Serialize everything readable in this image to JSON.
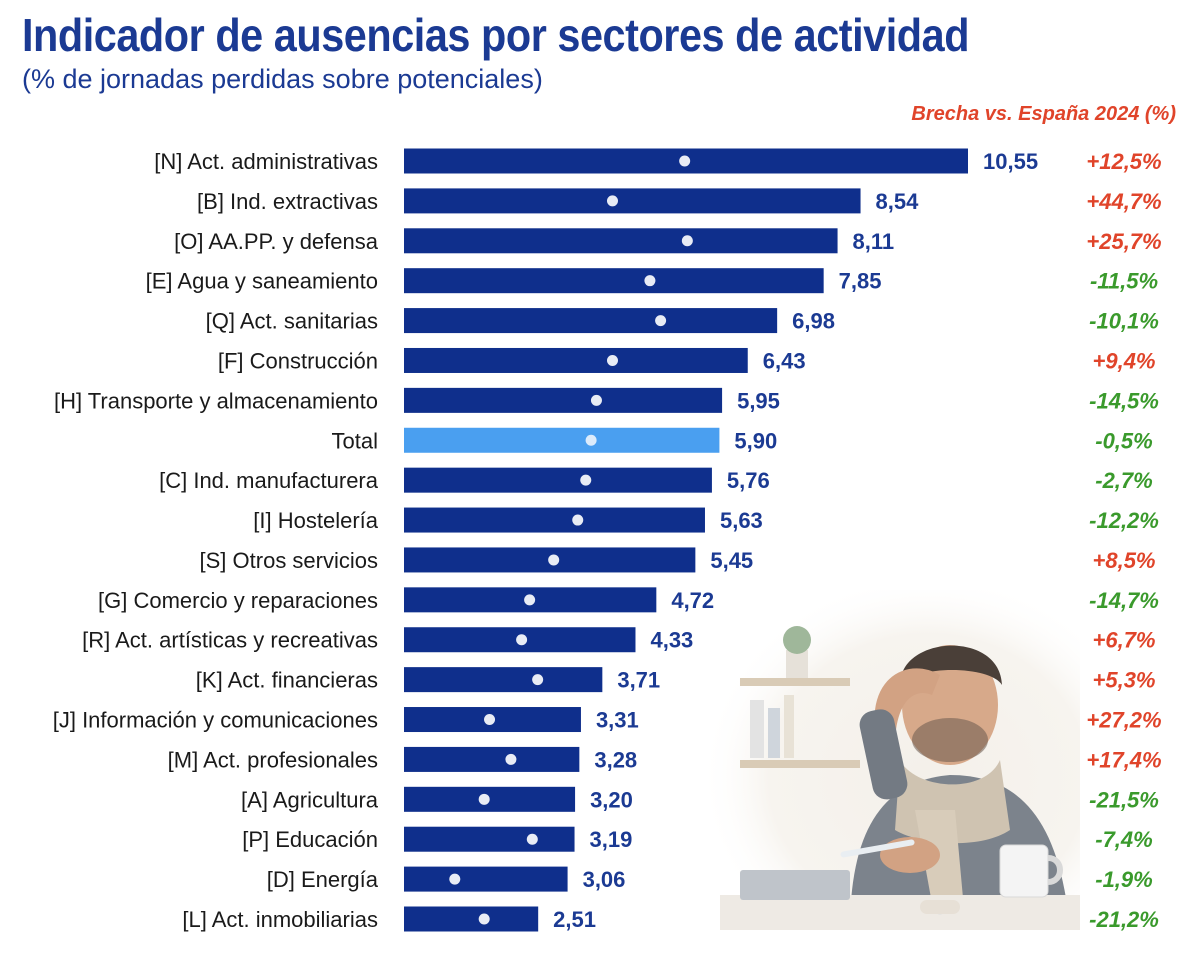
{
  "header": {
    "title": "Indicador de ausencias por sectores de actividad",
    "subtitle": "(% de jornadas perdidas sobre potenciales)",
    "gap_label": "Brecha vs. España 2024 (%)"
  },
  "colors": {
    "bar": "#0f2f8c",
    "bar_total": "#4a9ff0",
    "value_text": "#1b3a93",
    "positive_gap": "#e0442a",
    "negative_gap": "#3a9a2c"
  },
  "chart_data": {
    "type": "bar",
    "orientation": "horizontal",
    "categories": [
      "[N] Act. administrativas",
      "[B] Ind. extractivas",
      "[O] AA.PP. y defensa",
      "[E] Agua y saneamiento",
      "[Q] Act. sanitarias",
      "[F] Construcción",
      "[H] Transporte y almacenamiento",
      "Total",
      "[C] Ind. manufacturera",
      "[I] Hostelería",
      "[S] Otros servicios",
      "[G] Comercio y reparaciones",
      "[R] Act. artísticas y recreativas",
      "[K] Act. financieras",
      "[J] Información y comunicaciones",
      "[M] Act. profesionales",
      "[A] Agricultura",
      "[P] Educación",
      "[D] Energía",
      "[L] Act. inmobiliarias"
    ],
    "values": [
      10.55,
      8.54,
      8.11,
      7.85,
      6.98,
      6.43,
      5.95,
      5.9,
      5.76,
      5.63,
      5.45,
      4.72,
      4.33,
      3.71,
      3.31,
      3.28,
      3.2,
      3.19,
      3.06,
      2.51
    ],
    "value_labels": [
      "10,55",
      "8,54",
      "8,11",
      "7,85",
      "6,98",
      "6,43",
      "5,95",
      "5,90",
      "5,76",
      "5,63",
      "5,45",
      "4,72",
      "4,33",
      "3,71",
      "3,31",
      "3,28",
      "3,20",
      "3,19",
      "3,06",
      "2,51"
    ],
    "markers": [
      5.25,
      3.9,
      5.3,
      4.6,
      4.8,
      3.9,
      3.6,
      3.5,
      3.4,
      3.25,
      2.8,
      2.35,
      2.2,
      2.5,
      1.6,
      2.0,
      1.5,
      2.4,
      0.95,
      1.5
    ],
    "gap_labels": [
      "+12,5%",
      "+44,7%",
      "+25,7%",
      "-11,5%",
      "-10,1%",
      "+9,4%",
      "-14,5%",
      "-0,5%",
      "-2,7%",
      "-12,2%",
      "+8,5%",
      "-14,7%",
      "+6,7%",
      "+5,3%",
      "+27,2%",
      "+17,4%",
      "-21,5%",
      "-7,4%",
      "-1,9%",
      "-21,2%"
    ],
    "gap_values": [
      12.5,
      44.7,
      25.7,
      -11.5,
      -10.1,
      9.4,
      -14.5,
      -0.5,
      -2.7,
      -12.2,
      8.5,
      -14.7,
      6.7,
      5.3,
      27.2,
      17.4,
      -21.5,
      -7.4,
      -1.9,
      -21.2
    ],
    "highlight": "Total",
    "xlim": [
      0,
      10.55
    ],
    "grid": false,
    "legend": "none"
  }
}
